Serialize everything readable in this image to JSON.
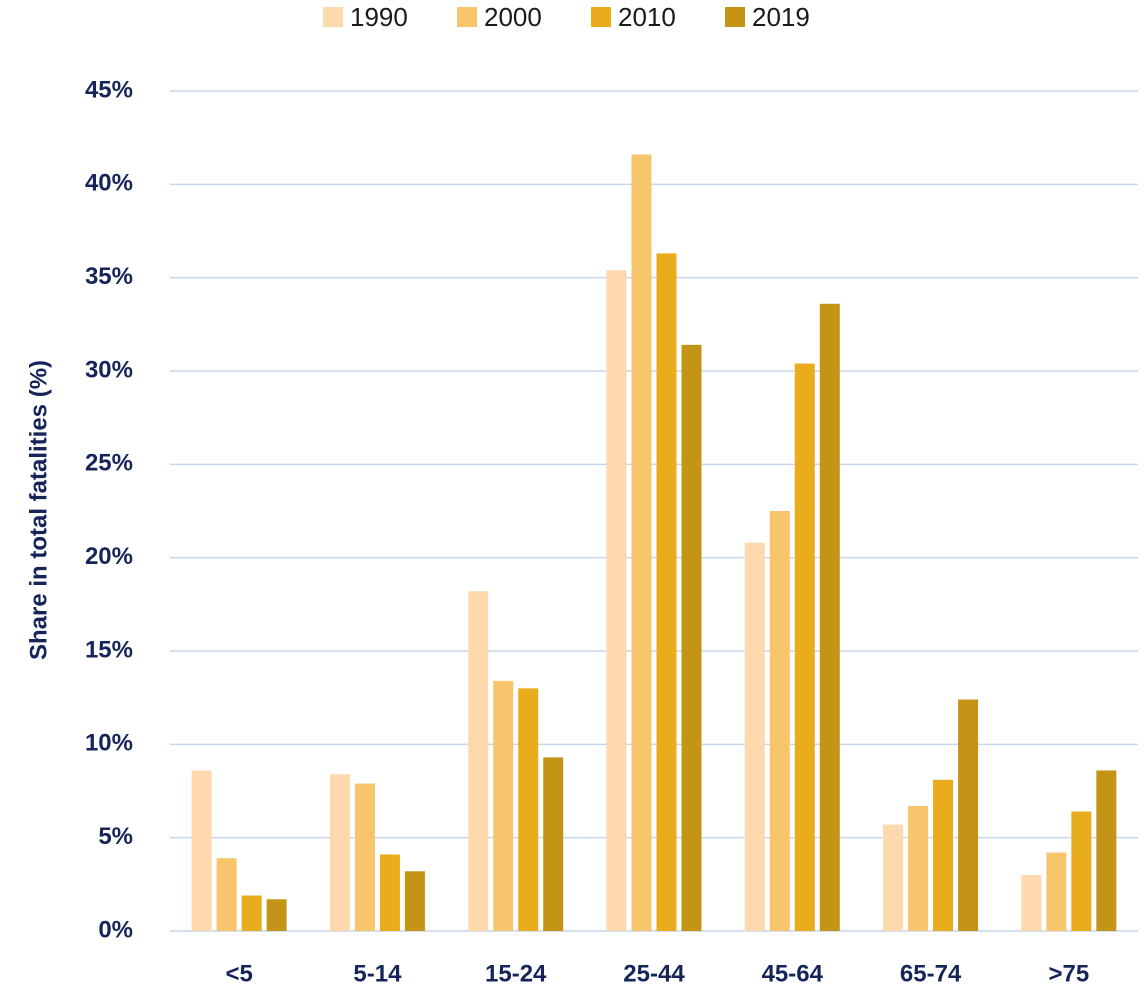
{
  "chart_data": {
    "type": "bar",
    "y_label": "Share in total fatalities (%)",
    "categories": [
      "<5",
      "5-14",
      "15-24",
      "25-44",
      "45-64",
      "65-74",
      ">75"
    ],
    "series": [
      {
        "name": "1990",
        "color": "#fdd9ad",
        "values": [
          8.6,
          8.4,
          18.2,
          35.4,
          20.8,
          5.7,
          3.0
        ]
      },
      {
        "name": "2000",
        "color": "#f7c56b",
        "values": [
          3.9,
          7.9,
          13.4,
          41.6,
          22.5,
          6.7,
          4.2
        ]
      },
      {
        "name": "2010",
        "color": "#e8ac1c",
        "values": [
          1.9,
          4.1,
          13.0,
          36.3,
          30.4,
          8.1,
          6.4
        ]
      },
      {
        "name": "2019",
        "color": "#c49416",
        "values": [
          1.7,
          3.2,
          9.3,
          31.4,
          33.6,
          12.4,
          8.6
        ]
      }
    ],
    "ylim": [
      0,
      45
    ],
    "yticks": [
      {
        "value": 0,
        "label": "0%"
      },
      {
        "value": 5,
        "label": "5%"
      },
      {
        "value": 10,
        "label": "10%"
      },
      {
        "value": 15,
        "label": "15%"
      },
      {
        "value": 20,
        "label": "20%"
      },
      {
        "value": 25,
        "label": "25%"
      },
      {
        "value": 30,
        "label": "30%"
      },
      {
        "value": 35,
        "label": "35%"
      },
      {
        "value": 40,
        "label": "40%"
      },
      {
        "value": 45,
        "label": "45%"
      }
    ],
    "grid": true,
    "legend": "top"
  }
}
